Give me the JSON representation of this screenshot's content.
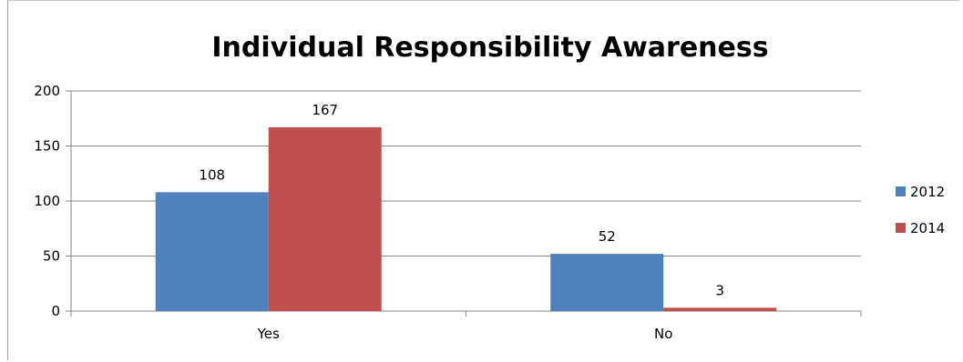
{
  "chart_data": {
    "type": "bar",
    "title": "Individual Responsibility Awareness",
    "xlabel": "",
    "ylabel": "",
    "categories": [
      "Yes",
      "No"
    ],
    "series": [
      {
        "name": "2012",
        "values": [
          108,
          52
        ],
        "color": "#4f81bd"
      },
      {
        "name": "2014",
        "values": [
          167,
          3
        ],
        "color": "#c0504d"
      }
    ],
    "ylim": [
      0,
      200
    ],
    "yticks": [
      0,
      50,
      100,
      150,
      200
    ],
    "grid": true,
    "legend_position": "right",
    "data_labels": true
  }
}
